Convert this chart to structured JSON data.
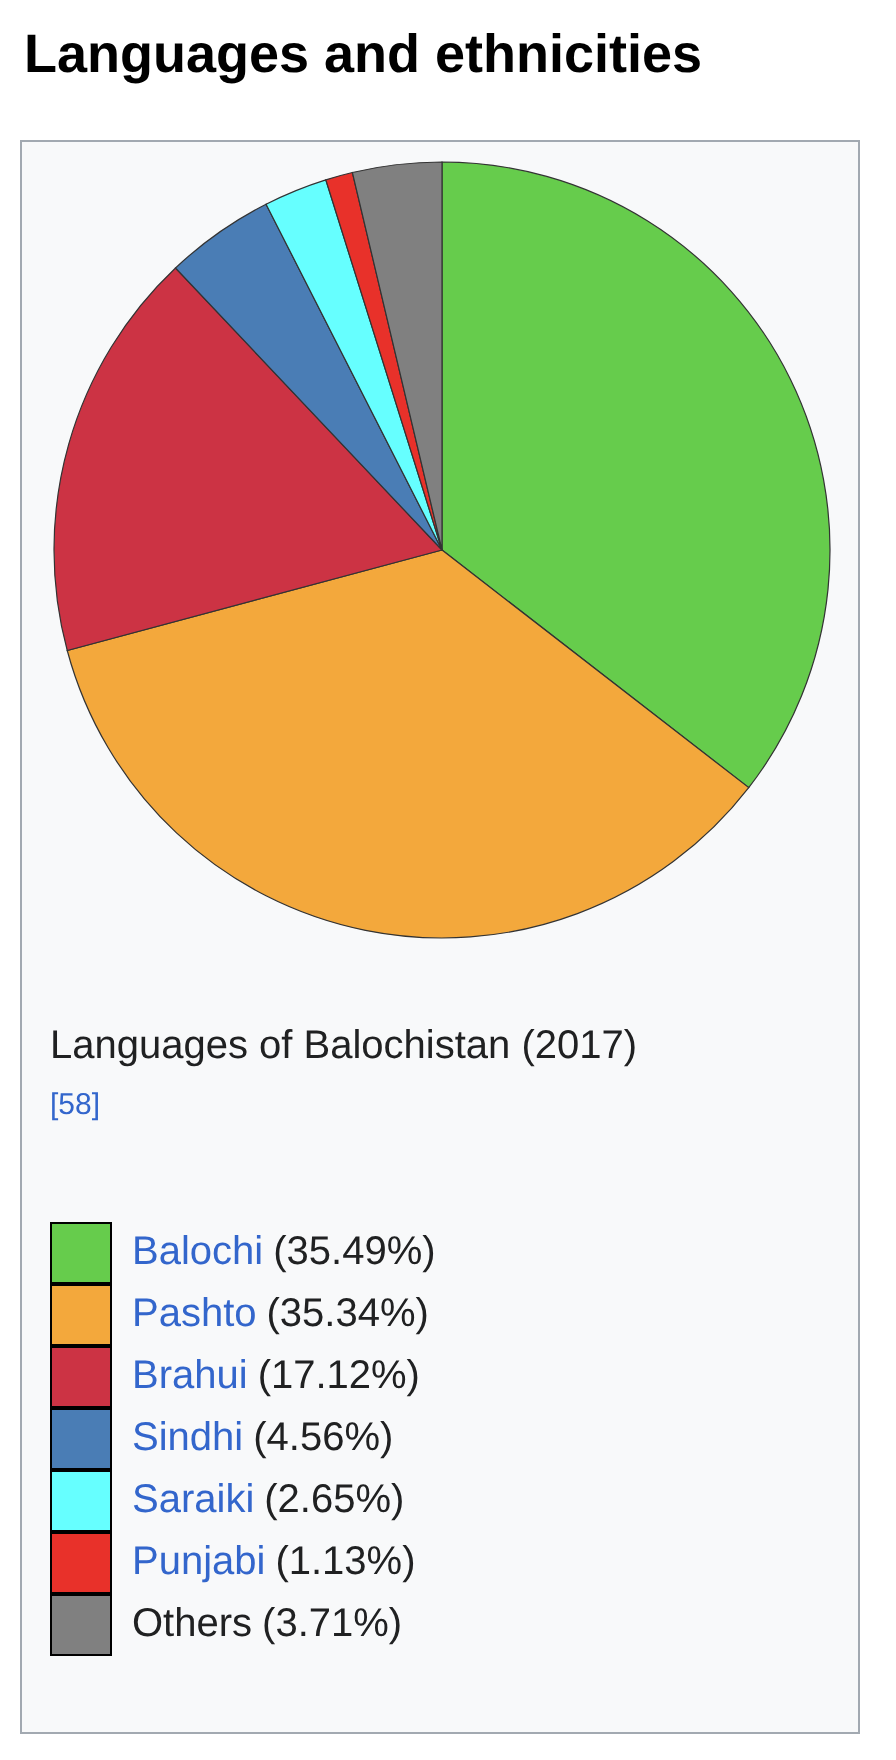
{
  "chart_data": {
    "type": "pie",
    "title": "Languages and ethnicities",
    "subtitle": "Languages of Balochistan (2017)$^{[58]}$",
    "categories": [
      "Balochi",
      "Pashto",
      "Brahui",
      "Sindhi",
      "Saraiki",
      "Punjabi",
      "Others"
    ],
    "values": [
      35.49,
      35.34,
      17.12,
      4.56,
      2.65,
      1.13,
      3.71
    ],
    "value_labels": [
      "(35.49%)",
      "(35.34%)",
      "(17.12%)",
      "(4.56%)",
      "(2.65%)",
      "(1.13%)",
      "(3.71%)"
    ],
    "colors": [
      "#66cc4c",
      "#f3a83c",
      "#cc3344",
      "#4a7db5",
      "#66ffff",
      "#e8312a",
      "#808080"
    ],
    "legend": "bottom"
  }
}
